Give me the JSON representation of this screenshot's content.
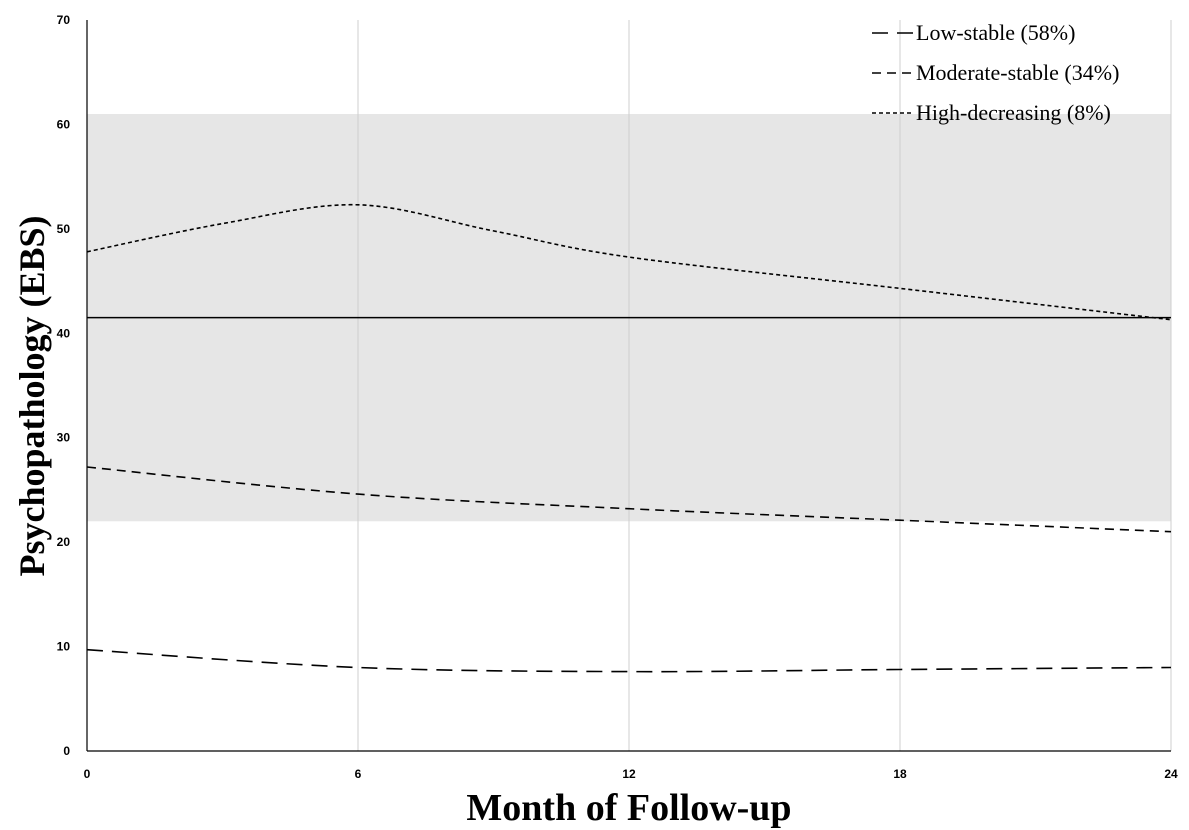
{
  "chart_data": {
    "type": "line",
    "title": "",
    "xlabel": "Month of Follow-up",
    "ylabel": "Psychopathology (EBS)",
    "x": [
      0,
      6,
      12,
      18,
      24
    ],
    "x_ticks": [
      "0",
      "6",
      "12",
      "18",
      "24"
    ],
    "y_ticks": [
      "0",
      "10",
      "20",
      "30",
      "40",
      "50",
      "60",
      "70"
    ],
    "xlim": [
      0,
      24
    ],
    "ylim": [
      0,
      70
    ],
    "grid": "vertical",
    "legend_position": "top-right",
    "shaded_band": {
      "y_min": 22,
      "y_max": 61,
      "color": "#e6e6e6"
    },
    "reference_line": {
      "y": 41.5,
      "color": "#000000"
    },
    "series": [
      {
        "name": "Low-stable (58%)",
        "dash": "long",
        "x": [
          0,
          6,
          12,
          18,
          24
        ],
        "values": [
          9.7,
          8.0,
          7.6,
          7.8,
          8.0
        ]
      },
      {
        "name": "Moderate-stable (34%)",
        "dash": "medium",
        "x": [
          0,
          6,
          12,
          18,
          24
        ],
        "values": [
          27.2,
          24.6,
          23.2,
          22.1,
          21.0
        ]
      },
      {
        "name": "High-decreasing (8%)",
        "dash": "short",
        "x": [
          0,
          3,
          6,
          9,
          12,
          18,
          24
        ],
        "values": [
          47.8,
          50.5,
          52.3,
          49.8,
          47.3,
          44.3,
          41.3
        ]
      }
    ]
  }
}
